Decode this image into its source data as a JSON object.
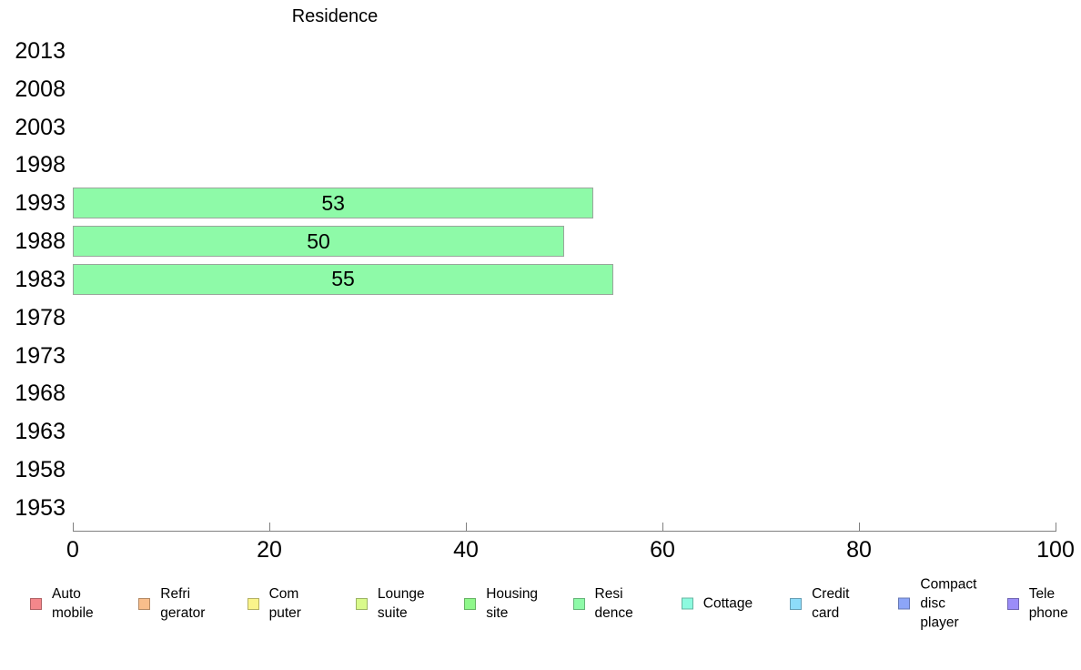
{
  "title": "Residence",
  "chart_data": {
    "type": "bar",
    "orientation": "horizontal",
    "title": "Residence",
    "categories": [
      "2013",
      "2008",
      "2003",
      "1998",
      "1993",
      "1988",
      "1983",
      "1978",
      "1973",
      "1968",
      "1963",
      "1958",
      "1953"
    ],
    "values": [
      null,
      null,
      null,
      null,
      53,
      50,
      55,
      null,
      null,
      null,
      null,
      null,
      null
    ],
    "value_labels": [
      "",
      "",
      "",
      "",
      "53",
      "50",
      "55",
      "",
      "",
      "",
      "",
      "",
      ""
    ],
    "xlim": [
      0,
      100
    ],
    "xticks": [
      "0",
      "20",
      "40",
      "60",
      "80",
      "100"
    ],
    "bar_fill": "#8EFAA8",
    "bar_border": "#9aa69c",
    "axis_color": "#808080",
    "grid": false,
    "legend_position": "bottom"
  },
  "legend": {
    "items": [
      {
        "name": "automobile",
        "label": "Auto\nmobile",
        "fill": "#F4878B",
        "border": "#B06164"
      },
      {
        "name": "refrigerator",
        "label": "Refri\ngerator",
        "fill": "#F9BE8B",
        "border": "#B38964"
      },
      {
        "name": "computer",
        "label": "Com\nputer",
        "fill": "#FAF48B",
        "border": "#B4B064"
      },
      {
        "name": "lounge-suite",
        "label": "Lounge\nsuite",
        "fill": "#D9FA8B",
        "border": "#9CB464"
      },
      {
        "name": "housing-site",
        "label": "Housing\nsite",
        "fill": "#8FF88B",
        "border": "#67B364"
      },
      {
        "name": "residence",
        "label": "Resi\ndence",
        "fill": "#8EFAA8",
        "border": "#66B479"
      },
      {
        "name": "cottage",
        "label": "Cottage",
        "fill": "#8DFADF",
        "border": "#66B4A0"
      },
      {
        "name": "credit-card",
        "label": "Credit\ncard",
        "fill": "#8DDCFA",
        "border": "#669EB4"
      },
      {
        "name": "compact-disc-player",
        "label": "Compact\ndisc\nplayer",
        "fill": "#8CA5F8",
        "border": "#6577B3"
      },
      {
        "name": "telephone",
        "label": "Tele\nphone",
        "fill": "#9B8DF8",
        "border": "#7065B3"
      }
    ]
  }
}
